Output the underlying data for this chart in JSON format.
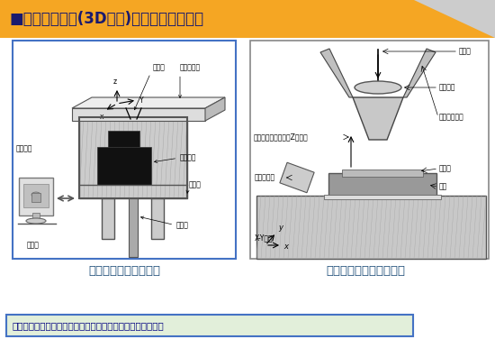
{
  "title": "■激光快速成形(3D打印)技术与航空制造业",
  "title_bg": "#F5A623",
  "bg_color": "#CCCCCC",
  "panel_bg": "#FFFFFF",
  "left_caption": "激光选区烧结成形原理",
  "right_caption": "激光熔覆快速成形原理图",
  "bottom_text": "高度柔性的激光快速成形技术非常适合飞机复杂结构件制造。",
  "left_border": "#4472C4",
  "right_border": "#888888",
  "caption_color": "#1F4E79",
  "bottom_border": "#4472C4",
  "bottom_bg": "#E2EFDA"
}
